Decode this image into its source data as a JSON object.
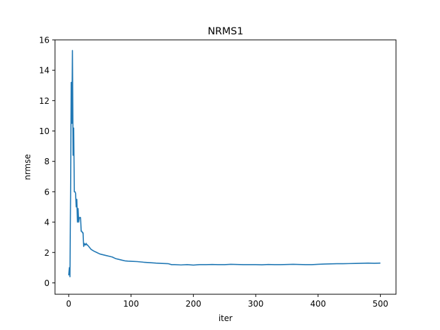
{
  "chart_data": {
    "type": "line",
    "title": "NRMS1",
    "xlabel": "iter",
    "ylabel": "nrmse",
    "xlim": [
      -22,
      525
    ],
    "ylim": [
      -0.75,
      16
    ],
    "xticks": [
      0,
      100,
      200,
      300,
      400,
      500
    ],
    "yticks": [
      0,
      2,
      4,
      6,
      8,
      10,
      12,
      14,
      16
    ],
    "grid": false,
    "series": [
      {
        "color": "#1f77b4",
        "x": [
          0,
          1,
          2,
          3,
          4,
          5,
          6,
          7,
          8,
          9,
          10,
          11,
          12,
          13,
          14,
          15,
          16,
          17,
          18,
          19,
          20,
          21,
          22,
          23,
          24,
          25,
          26,
          27,
          28,
          29,
          30,
          32,
          34,
          36,
          38,
          40,
          45,
          50,
          55,
          60,
          65,
          70,
          75,
          80,
          85,
          90,
          95,
          100,
          110,
          120,
          130,
          140,
          150,
          160,
          165,
          170,
          180,
          190,
          200,
          210,
          220,
          230,
          240,
          250,
          260,
          270,
          280,
          290,
          300,
          310,
          320,
          330,
          340,
          350,
          360,
          370,
          380,
          390,
          400,
          410,
          420,
          430,
          440,
          450,
          460,
          470,
          480,
          490,
          500
        ],
        "y": [
          0.5,
          1.0,
          0.4,
          5.8,
          13.2,
          10.5,
          15.3,
          8.4,
          10.2,
          6.0,
          6.0,
          5.9,
          5.0,
          5.5,
          4.0,
          4.9,
          4.0,
          4.3,
          4.3,
          4.3,
          3.4,
          3.4,
          3.3,
          3.3,
          2.4,
          2.6,
          2.5,
          2.5,
          2.6,
          2.5,
          2.5,
          2.4,
          2.3,
          2.2,
          2.15,
          2.1,
          2.0,
          1.9,
          1.85,
          1.8,
          1.75,
          1.7,
          1.6,
          1.55,
          1.5,
          1.45,
          1.43,
          1.42,
          1.4,
          1.36,
          1.33,
          1.3,
          1.28,
          1.26,
          1.2,
          1.2,
          1.18,
          1.2,
          1.17,
          1.2,
          1.2,
          1.21,
          1.2,
          1.2,
          1.22,
          1.21,
          1.2,
          1.2,
          1.2,
          1.19,
          1.21,
          1.2,
          1.2,
          1.21,
          1.22,
          1.21,
          1.2,
          1.2,
          1.22,
          1.24,
          1.25,
          1.26,
          1.26,
          1.27,
          1.28,
          1.29,
          1.3,
          1.29,
          1.3
        ]
      }
    ]
  }
}
